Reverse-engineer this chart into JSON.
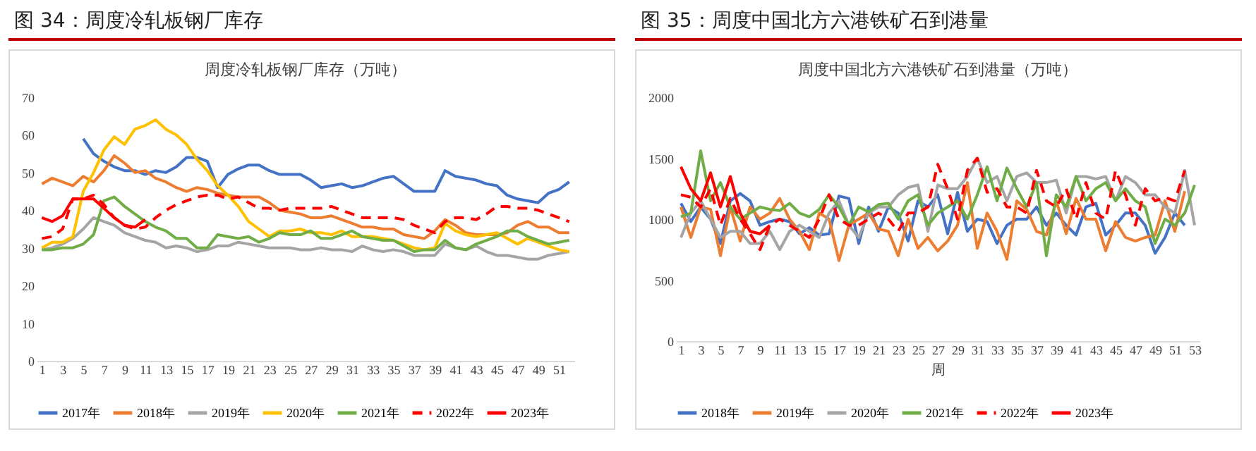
{
  "chart_data": [
    {
      "type": "line",
      "title": "图 34：周度冷轧板钢厂库存",
      "subtitle": "周度冷轧板钢厂库存（万吨）",
      "x": [
        1,
        2,
        3,
        4,
        5,
        6,
        7,
        8,
        9,
        10,
        11,
        12,
        13,
        14,
        15,
        16,
        17,
        18,
        19,
        20,
        21,
        22,
        23,
        24,
        25,
        26,
        27,
        28,
        29,
        30,
        31,
        32,
        33,
        34,
        35,
        36,
        37,
        38,
        39,
        40,
        41,
        42,
        43,
        44,
        45,
        46,
        47,
        48,
        49,
        50,
        51,
        52
      ],
      "xlim": [
        0.5,
        52.5
      ],
      "xticks": [
        1,
        3,
        5,
        7,
        9,
        11,
        13,
        15,
        17,
        19,
        21,
        23,
        25,
        27,
        29,
        31,
        33,
        35,
        37,
        39,
        41,
        43,
        45,
        47,
        49,
        51
      ],
      "ylim": [
        0,
        70
      ],
      "yticks": [
        0,
        10,
        20,
        30,
        40,
        50,
        60,
        70
      ],
      "legend": "bottom",
      "series": [
        {
          "name": "2017年",
          "color": "#4472c4",
          "values": [
            null,
            null,
            null,
            null,
            59,
            55,
            53,
            51.5,
            50.5,
            50.5,
            49.5,
            50.5,
            50,
            51.5,
            54,
            54,
            53,
            46,
            49.5,
            51,
            52,
            52,
            50.5,
            49.5,
            49.5,
            49.5,
            48,
            46,
            46.5,
            47,
            46,
            46.5,
            47.5,
            48.5,
            49,
            47,
            45,
            45,
            45,
            50.5,
            49,
            48.5,
            48,
            47,
            46.5,
            44,
            43,
            42.5,
            42,
            44.5,
            45.5,
            47.5
          ]
        },
        {
          "name": "2018年",
          "color": "#ed7d31",
          "values": [
            47,
            48.5,
            47.5,
            46.5,
            49,
            47.5,
            50.5,
            54.5,
            52.5,
            50,
            50.5,
            48.5,
            47.5,
            46,
            45,
            46,
            45.5,
            44.5,
            44,
            43.5,
            43.5,
            43.5,
            42,
            40,
            39.5,
            39,
            38,
            38,
            38.5,
            37.5,
            36.5,
            35.5,
            35.5,
            35,
            35,
            33.5,
            33,
            32.5,
            34.5,
            37.5,
            36,
            34,
            33.5,
            33.5,
            33.5,
            34,
            36,
            37,
            35.5,
            35.5,
            34,
            34
          ]
        },
        {
          "name": "2019年",
          "color": "#a5a5a5",
          "values": [
            29.5,
            30,
            31,
            32.5,
            35,
            38,
            37,
            36,
            34,
            33,
            32,
            31.5,
            30,
            30.5,
            30,
            29,
            29.5,
            30.5,
            30.5,
            31.5,
            31,
            30.5,
            30,
            30,
            30,
            29.5,
            29.5,
            30,
            29.5,
            29.5,
            29,
            30.5,
            29.5,
            29,
            29.5,
            29,
            28,
            28,
            28,
            31,
            30,
            29.5,
            30.5,
            29,
            28,
            28,
            27.5,
            27,
            27,
            28,
            28.5,
            29
          ]
        },
        {
          "name": "2020年",
          "color": "#ffc000",
          "values": [
            30,
            31.5,
            31.5,
            33,
            45,
            50,
            56,
            59.5,
            57.5,
            61.5,
            62.5,
            64,
            61.5,
            60,
            57.5,
            53.5,
            50.5,
            46.5,
            44,
            41,
            37,
            35,
            33,
            34.5,
            34.5,
            35,
            34,
            34,
            33.5,
            34.5,
            33,
            33,
            33,
            32.5,
            32,
            31,
            30,
            29.5,
            30,
            36.5,
            34.5,
            33.5,
            33,
            33.5,
            34,
            32.5,
            31,
            32.5,
            31.5,
            30.5,
            29.5,
            29
          ]
        },
        {
          "name": "2021年",
          "color": "#70ad47",
          "values": [
            29.5,
            29.5,
            30,
            30,
            31,
            33.5,
            42.5,
            43.5,
            41,
            39,
            37,
            35.5,
            34.5,
            32.5,
            32.5,
            30,
            30,
            33.5,
            33,
            32.5,
            33,
            31.5,
            32.5,
            34,
            33.5,
            33.5,
            34.5,
            32.5,
            32.5,
            33.5,
            34.5,
            33,
            32.5,
            32,
            32,
            30.5,
            29,
            29.5,
            29.5,
            32,
            30,
            29.5,
            31,
            32,
            33,
            34.5,
            34.5,
            33,
            32,
            31,
            31.5,
            32
          ]
        },
        {
          "name": "2022年",
          "color": "#ff0000",
          "line_style": "dashed",
          "values": [
            32.5,
            33,
            35,
            43,
            43,
            44,
            41.5,
            38,
            36,
            35,
            35.5,
            38,
            40,
            41.5,
            42.5,
            43.5,
            44,
            44,
            43,
            43.5,
            42,
            40.5,
            40.5,
            40,
            40.5,
            40.5,
            40.5,
            40.5,
            41,
            40,
            39,
            38,
            38,
            38,
            38,
            37.5,
            36,
            35,
            34,
            37,
            38,
            38,
            37.5,
            39,
            41,
            41,
            40.5,
            40.5,
            40,
            39,
            38,
            37
          ]
        },
        {
          "name": "2023年",
          "color": "#ff0000",
          "values": [
            38,
            37,
            38.5,
            43,
            43,
            43,
            40.5,
            38,
            36,
            35.5,
            37.5,
            null,
            null,
            null,
            null,
            null,
            null,
            null,
            null,
            null,
            null,
            null,
            null,
            null,
            null,
            null,
            null,
            null,
            null,
            null,
            null,
            null,
            null,
            null,
            null,
            null,
            null,
            null,
            null,
            null,
            null,
            null,
            null,
            null,
            null,
            null,
            null,
            null,
            null,
            null,
            null,
            null
          ]
        }
      ]
    },
    {
      "type": "line",
      "title": "图 35：周度中国北方六港铁矿石到港量",
      "subtitle": "周度中国北方六港铁矿石到港量（万吨）",
      "xlabel": "周",
      "x": [
        1,
        2,
        3,
        4,
        5,
        6,
        7,
        8,
        9,
        10,
        11,
        12,
        13,
        14,
        15,
        16,
        17,
        18,
        19,
        20,
        21,
        22,
        23,
        24,
        25,
        26,
        27,
        28,
        29,
        30,
        31,
        32,
        33,
        34,
        35,
        36,
        37,
        38,
        39,
        40,
        41,
        42,
        43,
        44,
        45,
        46,
        47,
        48,
        49,
        50,
        51,
        52,
        53
      ],
      "xlim": [
        0.5,
        53.5
      ],
      "xticks": [
        1,
        3,
        5,
        7,
        9,
        11,
        13,
        15,
        17,
        19,
        21,
        23,
        25,
        27,
        29,
        31,
        33,
        35,
        37,
        39,
        41,
        43,
        45,
        47,
        49,
        51,
        53
      ],
      "ylim": [
        0,
        2000
      ],
      "yticks": [
        0,
        500,
        1000,
        1500,
        2000
      ],
      "legend": "bottom",
      "series": [
        {
          "name": "2018年",
          "color": "#4472c4",
          "values": [
            1130,
            980,
            1100,
            1000,
            800,
            1150,
            1210,
            1150,
            950,
            980,
            1000,
            980,
            880,
            930,
            870,
            880,
            1190,
            1170,
            800,
            1100,
            900,
            1100,
            1050,
            820,
            1150,
            1100,
            1200,
            880,
            1220,
            900,
            1000,
            980,
            800,
            950,
            1000,
            1000,
            1100,
            950,
            1050,
            950,
            870,
            1100,
            1130,
            870,
            950,
            1050,
            1050,
            950,
            720,
            850,
            1050,
            950,
            null
          ]
        },
        {
          "name": "2019年",
          "color": "#ed7d31",
          "values": [
            1100,
            850,
            1100,
            1080,
            700,
            1100,
            820,
            1100,
            1000,
            1050,
            1170,
            1000,
            900,
            750,
            1050,
            1000,
            660,
            950,
            1000,
            1050,
            920,
            900,
            700,
            1000,
            760,
            850,
            740,
            820,
            950,
            1300,
            760,
            1050,
            900,
            670,
            1150,
            1080,
            900,
            870,
            1150,
            880,
            1170,
            1000,
            1000,
            740,
            980,
            850,
            820,
            850,
            870,
            1150,
            900,
            1230,
            null
          ]
        },
        {
          "name": "2020年",
          "color": "#a5a5a5",
          "values": [
            850,
            1050,
            1150,
            1000,
            850,
            900,
            900,
            800,
            800,
            900,
            750,
            900,
            950,
            900,
            850,
            1050,
            1150,
            950,
            850,
            1050,
            1100,
            1100,
            1200,
            1260,
            1280,
            900,
            1280,
            1250,
            1250,
            1350,
            1500,
            1300,
            1350,
            1150,
            1350,
            1380,
            1300,
            1300,
            1320,
            1050,
            1350,
            1350,
            1330,
            1350,
            1150,
            1350,
            1300,
            1200,
            1200,
            1100,
            1050,
            1400,
            950
          ]
        },
        {
          "name": "2021年",
          "color": "#70ad47",
          "values": [
            1020,
            1050,
            1560,
            1150,
            1300,
            1100,
            1000,
            1050,
            1100,
            1080,
            1070,
            1130,
            1050,
            1020,
            1080,
            1200,
            1100,
            950,
            1100,
            1060,
            1120,
            1130,
            1000,
            1150,
            1200,
            950,
            1050,
            1100,
            1150,
            1000,
            1200,
            1430,
            1150,
            1420,
            1250,
            1100,
            1300,
            700,
            1200,
            1100,
            1350,
            1150,
            1250,
            1300,
            1150,
            1250,
            1150,
            1100,
            800,
            1000,
            950,
            1050,
            1280
          ]
        },
        {
          "name": "2022年",
          "color": "#ff0000",
          "line_style": "dashed",
          "values": [
            1200,
            1180,
            1100,
            1250,
            950,
            1170,
            1000,
            880,
            750,
            950,
            1000,
            950,
            900,
            850,
            1000,
            1200,
            1000,
            950,
            950,
            1000,
            1050,
            1000,
            900,
            1050,
            1050,
            1100,
            1450,
            1250,
            1000,
            1400,
            1500,
            1220,
            1250,
            1100,
            1100,
            1050,
            1400,
            1150,
            1100,
            1250,
            1000,
            1300,
            1050,
            1000,
            1400,
            1200,
            950,
            1250,
            1150,
            1180,
            1150,
            1400,
            null
          ]
        },
        {
          "name": "2023年",
          "color": "#ff0000",
          "values": [
            1430,
            1250,
            1150,
            1380,
            1100,
            1350,
            1050,
            900,
            880,
            950,
            null,
            null,
            null,
            null,
            null,
            null,
            null,
            null,
            null,
            null,
            null,
            null,
            null,
            null,
            null,
            null,
            null,
            null,
            null,
            null,
            null,
            null,
            null,
            null,
            null,
            null,
            null,
            null,
            null,
            null,
            null,
            null,
            null,
            null,
            null,
            null,
            null,
            null,
            null,
            null,
            null,
            null,
            null
          ]
        }
      ]
    }
  ]
}
